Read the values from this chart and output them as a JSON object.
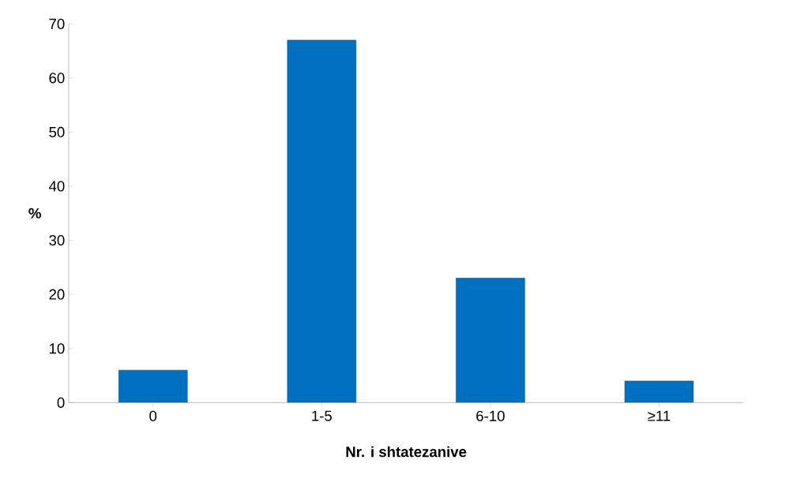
{
  "chart_data": {
    "type": "bar",
    "xlabel": "Nr. i shtatezanive",
    "ylabel": "%",
    "categories": [
      "0",
      "1-5",
      "6-10",
      "≥11"
    ],
    "values": [
      6,
      67,
      23,
      4
    ],
    "color": "#0070c0",
    "ylim": [
      0,
      70
    ],
    "yticks": [
      0,
      10,
      20,
      30,
      40,
      50,
      60,
      70
    ],
    "grid": false
  }
}
